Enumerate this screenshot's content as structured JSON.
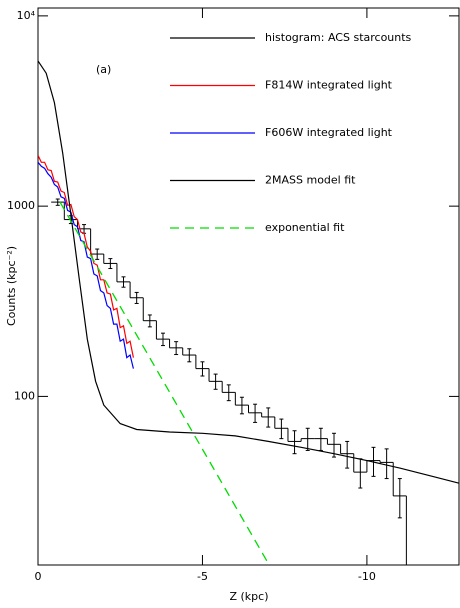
{
  "chart_data": {
    "type": "line",
    "xlabel": "Z (kpc)",
    "ylabel": "Counts (kpc⁻²)",
    "annotation": "(a)",
    "xlim": [
      0,
      -12.8
    ],
    "xticks": [
      0,
      -5,
      -10
    ],
    "ylim": [
      13,
      11000
    ],
    "yticks": [
      {
        "value": 10000,
        "label": "10⁴"
      },
      1000,
      100
    ],
    "log_y": true,
    "legend": "upper right",
    "histogram": {
      "name": "histogram: ACS starcounts",
      "color": "#000000",
      "bins": [
        -0.4,
        -0.8,
        -1.2,
        -1.6,
        -2.0,
        -2.4,
        -2.8,
        -3.2,
        -3.6,
        -4.0,
        -4.4,
        -4.8,
        -5.2,
        -5.6,
        -6.0,
        -6.4,
        -6.8,
        -7.2,
        -7.6,
        -8.0,
        -8.4,
        -8.8,
        -9.2,
        -9.6,
        -10.0,
        -10.4,
        -10.8,
        -11.2
      ],
      "counts": [
        1050,
        850,
        760,
        560,
        500,
        400,
        330,
        250,
        200,
        180,
        165,
        140,
        120,
        105,
        90,
        82,
        78,
        68,
        58,
        60,
        60,
        56,
        50,
        40,
        46,
        45,
        30
      ],
      "errors": [
        40,
        40,
        40,
        35,
        30,
        25,
        22,
        18,
        15,
        14,
        13,
        12,
        11,
        10,
        9,
        9,
        9,
        8,
        8,
        8,
        8,
        8,
        8,
        7,
        8,
        8,
        7
      ]
    },
    "series": [
      {
        "name": "F814W integrated light",
        "color": "#ff0000",
        "style": "solid",
        "x": [
          0,
          -0.1,
          -0.2,
          -0.3,
          -0.4,
          -0.5,
          -0.6,
          -0.7,
          -0.8,
          -0.9,
          -1.0,
          -1.1,
          -1.2,
          -1.3,
          -1.4,
          -1.5,
          -1.6,
          -1.7,
          -1.8,
          -1.9,
          -2.0,
          -2.1,
          -2.2,
          -2.3,
          -2.4,
          -2.5,
          -2.6,
          -2.7,
          -2.8,
          -2.9
        ],
        "values": [
          1850,
          1700,
          1700,
          1550,
          1540,
          1350,
          1340,
          1200,
          1180,
          1010,
          1020,
          880,
          850,
          730,
          720,
          610,
          580,
          500,
          490,
          410,
          410,
          350,
          345,
          285,
          290,
          230,
          235,
          190,
          195,
          160
        ]
      },
      {
        "name": "F606W integrated light",
        "color": "#0000ff",
        "style": "solid",
        "x": [
          0,
          -0.1,
          -0.2,
          -0.3,
          -0.4,
          -0.5,
          -0.6,
          -0.7,
          -0.8,
          -0.9,
          -1.0,
          -1.1,
          -1.2,
          -1.3,
          -1.4,
          -1.5,
          -1.6,
          -1.7,
          -1.8,
          -1.9,
          -2.0,
          -2.1,
          -2.2,
          -2.3,
          -2.4,
          -2.5,
          -2.6,
          -2.7,
          -2.8,
          -2.9
        ],
        "values": [
          1700,
          1620,
          1580,
          1480,
          1420,
          1300,
          1260,
          1120,
          1100,
          950,
          930,
          800,
          780,
          660,
          650,
          540,
          530,
          440,
          430,
          360,
          350,
          300,
          290,
          240,
          240,
          195,
          200,
          160,
          165,
          140
        ]
      },
      {
        "name": "2MASS model fit",
        "color": "#000000",
        "style": "solid",
        "x": [
          0,
          -0.25,
          -0.5,
          -0.75,
          -1,
          -1.25,
          -1.5,
          -1.75,
          -2,
          -2.5,
          -3,
          -4,
          -5,
          -6,
          -7,
          -8,
          -9,
          -10,
          -11,
          -12,
          -12.8
        ],
        "values": [
          5800,
          5000,
          3500,
          1900,
          900,
          420,
          200,
          120,
          90,
          72,
          67,
          65,
          64,
          62,
          58,
          54,
          50,
          46,
          42,
          38,
          35
        ]
      },
      {
        "name": "exponential fit",
        "color": "#00dd00",
        "style": "dashed",
        "x": [
          -0.67,
          -7.03
        ],
        "values": [
          1050,
          13
        ]
      }
    ]
  }
}
